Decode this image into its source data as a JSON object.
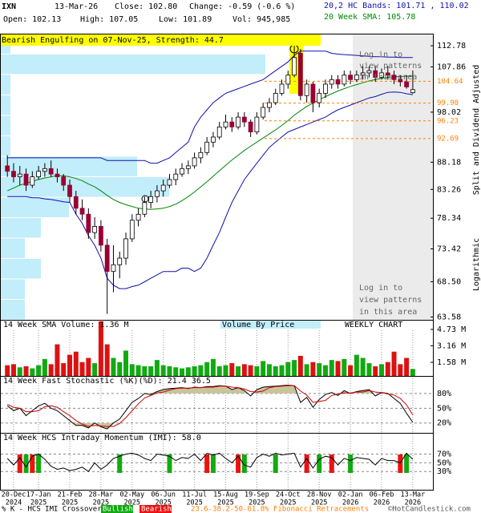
{
  "header": {
    "symbol": "IXN",
    "date": "13-Mar-26",
    "close": "Close: 102.80",
    "change": "Change: -0.59 (-0.6 %)",
    "open": "Open: 102.13",
    "high": "High: 107.05",
    "low": "Low: 101.89",
    "vol": "Vol: 945,985",
    "bands": "20,2 HC Bands: 101.71 , 110.02",
    "sma": "20 Week SMA: 105.78",
    "bands_color": "#1010b0",
    "sma_color": "#008800"
  },
  "chart_data": [
    {
      "type": "candlestick",
      "annotation": "Bearish Engulfing on 07-Nov-25, Strength: 44.7",
      "log_scale": true,
      "ylim": [
        63.2,
        115.7
      ],
      "yticks": [
        112.78,
        107.86,
        98.02,
        88.18,
        83.26,
        78.34,
        73.42,
        {
          "value": 68.5,
          "label": "68.50"
        },
        63.58
      ],
      "categories": [
        null,
        [
          "20-Dec",
          "2024"
        ],
        null,
        null,
        null,
        [
          "17-Jan",
          "2025"
        ],
        null,
        null,
        null,
        null,
        [
          "21-Feb",
          "2025"
        ],
        null,
        null,
        null,
        null,
        [
          "28-Mar",
          "2025"
        ],
        null,
        null,
        null,
        null,
        [
          "02-May",
          "2025"
        ],
        null,
        null,
        null,
        null,
        [
          "06-Jun",
          "2025"
        ],
        null,
        null,
        null,
        null,
        [
          "11-Jul",
          "2025"
        ],
        null,
        null,
        null,
        null,
        [
          "15-Aug",
          "2025"
        ],
        null,
        null,
        null,
        null,
        [
          "19-Sep",
          "2025"
        ],
        null,
        null,
        null,
        null,
        [
          "24-Oct",
          "2025"
        ],
        null,
        null,
        null,
        null,
        [
          "28-Nov",
          "2025"
        ],
        null,
        null,
        null,
        null,
        [
          "02-Jan",
          "2026"
        ],
        null,
        null,
        null,
        null,
        [
          "06-Feb",
          "2026"
        ],
        null,
        null,
        null,
        null,
        [
          "13-Mar",
          "2026"
        ]
      ],
      "open": [
        87.5,
        86.5,
        85.5,
        86,
        84,
        85.5,
        86.5,
        87,
        86,
        85.5,
        84,
        82,
        80,
        79,
        76,
        77,
        74,
        70,
        71,
        72,
        75,
        78,
        79,
        81,
        82,
        83,
        84,
        85,
        86,
        87,
        87.5,
        89,
        90,
        92,
        93,
        95,
        96,
        95,
        97,
        96,
        94,
        97,
        99,
        100,
        102,
        104,
        106,
        111,
        101.5,
        104,
        100,
        102,
        104,
        105,
        104,
        106,
        105,
        106,
        106.5,
        107,
        105.5,
        106.5,
        106,
        105,
        104.5,
        102.13
      ],
      "high": [
        89.5,
        88,
        87.5,
        87,
        86.5,
        87.5,
        88,
        88.5,
        87,
        86,
        85,
        83,
        81.5,
        80,
        78.5,
        78,
        75,
        74,
        73,
        76,
        79,
        80,
        82,
        83,
        84,
        85,
        86,
        87,
        88,
        88.5,
        90,
        91,
        93,
        94,
        96,
        97.5,
        97,
        98,
        98,
        96.5,
        98,
        100,
        101,
        103,
        105,
        107,
        112.78,
        112,
        105,
        104.5,
        103,
        105,
        106,
        106,
        107,
        107,
        107,
        108,
        108,
        108,
        107.5,
        108,
        107,
        106,
        106,
        107.05
      ],
      "low": [
        85.5,
        84.5,
        84,
        83,
        83.5,
        85,
        85.5,
        85.5,
        84.5,
        83,
        81,
        79,
        78,
        75,
        75,
        73,
        64,
        67,
        69,
        71,
        74.5,
        77,
        78.5,
        80,
        81,
        82,
        83.5,
        84,
        85.5,
        86,
        87,
        88,
        89.5,
        91,
        92.5,
        94.5,
        94,
        94.5,
        95,
        93,
        93.5,
        96.5,
        98,
        99.5,
        101.5,
        103,
        105.5,
        100.5,
        100,
        98,
        99,
        101,
        103,
        103,
        103.5,
        104,
        104.5,
        105,
        105.5,
        104.5,
        105,
        105,
        104,
        103.5,
        103,
        101.89
      ],
      "close": [
        86.5,
        85.5,
        86,
        84,
        85.5,
        86.5,
        87,
        86,
        85.5,
        84,
        82,
        80,
        79,
        76,
        77,
        74,
        70,
        71,
        72,
        75,
        78,
        79,
        81,
        82,
        83,
        84,
        85,
        86,
        87,
        87.5,
        89,
        90,
        92,
        93,
        95,
        96,
        95,
        97,
        96,
        94,
        97,
        99,
        100,
        102,
        104,
        106,
        110,
        101.5,
        104,
        100,
        102,
        104,
        105,
        104,
        106,
        105,
        106,
        106.5,
        107,
        105.5,
        106.5,
        106,
        105,
        104.5,
        103.39,
        102.8
      ],
      "up_color": "#ffffff",
      "down_color": "#990033",
      "lines": [
        {
          "color": "#008800",
          "values": [
            83,
            83.5,
            84,
            84.3,
            84.7,
            85,
            85.3,
            85.5,
            85.7,
            85.7,
            85.5,
            85.2,
            84.8,
            84.2,
            83.7,
            83,
            82.2,
            81.5,
            81,
            80.6,
            80.3,
            80,
            79.9,
            79.8,
            79.9,
            80,
            80.3,
            80.7,
            81.3,
            82,
            82.8,
            83.7,
            84.6,
            85.6,
            86.6,
            87.6,
            88.6,
            89.5,
            90.4,
            91.2,
            92,
            92.8,
            93.6,
            94.4,
            95.3,
            96.3,
            97.4,
            98.3,
            99.2,
            99.9,
            100.6,
            101.3,
            101.9,
            102.5,
            103,
            103.5,
            103.9,
            104.3,
            104.7,
            105,
            105.3,
            105.5,
            105.6,
            105.7,
            105.75,
            105.78
          ]
        },
        {
          "color": "#1010b0",
          "values": [
            89,
            89,
            89,
            89,
            89,
            89,
            89,
            89,
            89,
            89,
            89,
            89,
            89,
            89,
            89,
            89,
            88.5,
            88.5,
            88.5,
            88.5,
            88.5,
            88.5,
            88.5,
            88,
            88,
            88.5,
            89,
            90,
            91,
            92,
            95,
            97,
            98.5,
            100,
            101,
            102,
            102.5,
            103,
            103.5,
            104,
            104.5,
            105,
            106,
            107,
            108,
            109,
            110.5,
            111.5,
            111.5,
            111.5,
            111.5,
            111.5,
            111,
            110.8,
            110.7,
            110.6,
            110.5,
            110.4,
            110.3,
            110.2,
            110.2,
            110.1,
            110.1,
            110,
            110,
            110.02
          ]
        },
        {
          "color": "#1010b0",
          "values": [
            82,
            82,
            82,
            82,
            81.8,
            81.8,
            81.6,
            81.5,
            81.3,
            81.1,
            81,
            79,
            77.5,
            75.5,
            74,
            72,
            69,
            68,
            67.5,
            67.5,
            67.8,
            68,
            68.5,
            69,
            69.5,
            70,
            70,
            70,
            70.5,
            70.5,
            70,
            70.5,
            72,
            74,
            76,
            78.5,
            81,
            83,
            85,
            86.5,
            88,
            89.5,
            91,
            92,
            93,
            94,
            94.5,
            95,
            95.5,
            96,
            96.5,
            97,
            97.8,
            98.5,
            99,
            99.5,
            100,
            100.5,
            101,
            101.3,
            101.8,
            102.2,
            102.3,
            102.2,
            101.9,
            101.71
          ]
        }
      ],
      "fibonacci": {
        "color": "#ff7f00",
        "levels": [
          104.64,
          {
            "value": 99.9,
            "label": "99.90"
          },
          96.23,
          92.69
        ]
      },
      "volume_by_price": {
        "title": "Volume By Price",
        "color": "#c2edfb",
        "bins": [
          63.2,
          65.99,
          68.9,
          71.95,
          75.12,
          78.44,
          81.9,
          85.52,
          89.3,
          93.24,
          97.36,
          101.66,
          106.15,
          110.83,
          115.7
        ],
        "values": [
          3000000,
          3000000,
          5000000,
          3000000,
          5000000,
          8500000,
          21000000,
          17000000,
          1200000,
          1200000,
          1200000,
          1200000,
          33000000,
          1200000
        ]
      },
      "notes": [
        [
          "Log in to",
          "view patterns",
          "in this area"
        ],
        [
          "Log in to",
          "view patterns",
          "in this area"
        ]
      ],
      "side_labels": [
        "Split and Dividend Adjusted",
        "Logarithmic"
      ]
    },
    {
      "type": "bar",
      "title": "14 Week SMA Volume: 1.36 M",
      "label": "WEEKLY CHART",
      "ylim": [
        200000,
        5570000
      ],
      "yticks": [
        {
          "value": 4730000,
          "label": "4.73 M"
        },
        {
          "value": 3160000,
          "label": "3.16 M"
        },
        {
          "value": 1580000,
          "label": "1.58 M"
        }
      ],
      "up_color": "#11aa11",
      "down_color": "#dd1111",
      "values": [
        1300000,
        1400000,
        1100000,
        1200000,
        1000000,
        1300000,
        1900000,
        1400000,
        3300000,
        1500000,
        2300000,
        2600000,
        1600000,
        2000000,
        1500000,
        5500000,
        3300000,
        2000000,
        1600000,
        2700000,
        1400000,
        1300000,
        1200000,
        1200000,
        1800000,
        1300000,
        1200000,
        1100000,
        1000000,
        1100000,
        1200000,
        1300000,
        1600000,
        1900000,
        1200000,
        1300000,
        1500000,
        1200000,
        1400000,
        1300000,
        1200000,
        1700000,
        1400000,
        1200000,
        1300000,
        1600000,
        1800000,
        2200000,
        1400000,
        1600000,
        1500000,
        1300000,
        1800000,
        1700000,
        1900000,
        1300000,
        2300000,
        2000000,
        1500000,
        1200000,
        1400000,
        1600000,
        2600000,
        1400000,
        2000000,
        945985
      ]
    },
    {
      "type": "line",
      "title": "14 Week Fast Stochastic (%K)(%D): 21.4 36.5",
      "ylim": [
        0,
        112.5
      ],
      "yticks": [
        {
          "value": 80,
          "label": "80%"
        },
        {
          "value": 50,
          "label": "50%"
        },
        {
          "value": 20,
          "label": "20%"
        }
      ],
      "fill_color": "#c9c49c",
      "series": [
        {
          "color": "#000000",
          "values": [
            55,
            45,
            50,
            35,
            45,
            55,
            60,
            50,
            45,
            35,
            25,
            15,
            15,
            10,
            20,
            12,
            8,
            20,
            28,
            45,
            62,
            70,
            80,
            78,
            84,
            88,
            90,
            91,
            92,
            90,
            93,
            92,
            94,
            94,
            96,
            95,
            88,
            92,
            86,
            75,
            88,
            93,
            94,
            95,
            96,
            97,
            96,
            62,
            72,
            52,
            68,
            78,
            82,
            76,
            86,
            80,
            84,
            86,
            88,
            75,
            82,
            80,
            70,
            60,
            40,
            21.4
          ]
        },
        {
          "color": "#cc0000",
          "values": [
            58,
            52,
            50,
            43,
            43,
            45,
            53,
            55,
            52,
            43,
            35,
            25,
            18,
            13,
            15,
            14,
            13,
            13,
            19,
            31,
            45,
            59,
            71,
            76,
            81,
            83,
            87,
            90,
            91,
            91,
            92,
            92,
            93,
            93,
            95,
            95,
            93,
            92,
            89,
            84,
            83,
            85,
            92,
            94,
            95,
            96,
            96,
            85,
            77,
            62,
            64,
            66,
            76,
            79,
            81,
            81,
            83,
            83,
            86,
            83,
            82,
            79,
            77,
            70,
            57,
            36.5
          ]
        }
      ]
    },
    {
      "type": "line",
      "title": "14 Week HCS Intraday Momentum (IMI): 58.0",
      "ylim": [
        -12,
        117
      ],
      "yticks": [
        {
          "value": 70,
          "label": "70%"
        },
        {
          "value": 50,
          "label": "50%"
        },
        {
          "value": 30,
          "label": "30%"
        }
      ],
      "series": [
        {
          "color": "#000000",
          "values": [
            60,
            45,
            62,
            40,
            65,
            70,
            58,
            42,
            35,
            38,
            32,
            35,
            40,
            30,
            50,
            35,
            45,
            60,
            65,
            70,
            72,
            68,
            60,
            55,
            70,
            68,
            65,
            55,
            62,
            60,
            70,
            55,
            72,
            68,
            72,
            60,
            50,
            65,
            45,
            40,
            62,
            70,
            65,
            72,
            68,
            70,
            72,
            40,
            60,
            38,
            58,
            65,
            62,
            45,
            60,
            55,
            62,
            60,
            58,
            45,
            60,
            55,
            55,
            50,
            72,
            58.0
          ]
        }
      ],
      "signals": [
        null,
        null,
        "Bearish",
        "Bullish",
        "Bearish",
        "Bullish",
        null,
        null,
        null,
        null,
        null,
        null,
        null,
        null,
        null,
        null,
        null,
        null,
        "Bullish",
        null,
        null,
        null,
        null,
        null,
        null,
        null,
        "Bullish",
        null,
        null,
        null,
        null,
        null,
        "Bearish",
        "Bullish",
        null,
        null,
        null,
        "Bearish",
        "Bullish",
        null,
        null,
        null,
        null,
        "Bullish",
        null,
        null,
        null,
        null,
        "Bearish",
        null,
        "Bullish",
        null,
        "Bearish",
        null,
        null,
        "Bullish",
        null,
        null,
        null,
        null,
        null,
        null,
        null,
        "Bearish",
        "Bullish",
        null
      ],
      "signal_colors": {
        "Bullish": "#11aa11",
        "Bearish": "#ee1111"
      }
    }
  ],
  "footer": {
    "crossover": "% K - HCS IMI Crossover,",
    "bullish": "Bullish",
    "bearish": "Bearish",
    "fib": "23.6-38.2-50-61.8% Fibonacci Retracements",
    "copyright": "©HotCandlestick.com"
  }
}
